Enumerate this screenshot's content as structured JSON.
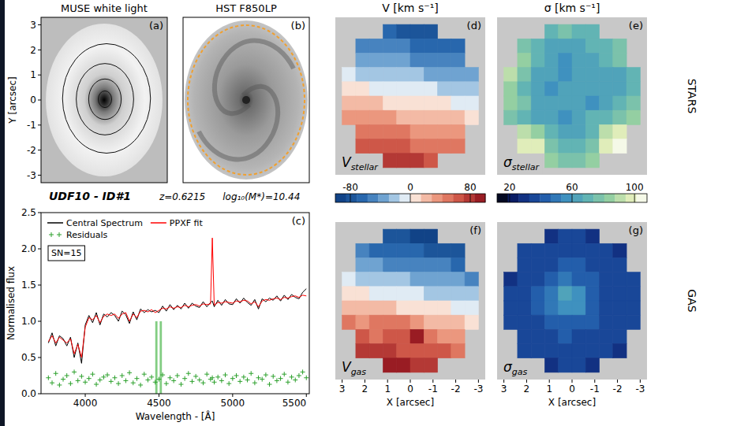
{
  "header": {
    "object": "UDF10 - ID#1",
    "redshift": "z=0.6215",
    "mass": "log₁₀(M*)=10.44"
  },
  "chart_data": [
    {
      "type": "image",
      "title": "MUSE white light",
      "panel_label": "(a)",
      "ylabel": "Y [arcsec]",
      "xlim": [
        -3.3,
        3.3
      ],
      "ylim": [
        -3.3,
        3.3
      ],
      "yticks": [
        -3,
        -2,
        -1,
        0,
        1,
        2,
        3
      ],
      "tick_labels": "y"
    },
    {
      "type": "image",
      "title": "HST F850LP",
      "panel_label": "(b)",
      "tick_labels": false
    },
    {
      "type": "line",
      "panel_label": "(c)",
      "xlabel": "Wavelength - [Å]",
      "ylabel": "Normalised flux",
      "annotation": "SN=15",
      "legend": "upper left",
      "x": [
        3750,
        3775,
        3800,
        3825,
        3850,
        3875,
        3900,
        3925,
        3950,
        3975,
        4000,
        4025,
        4050,
        4075,
        4100,
        4125,
        4150,
        4175,
        4200,
        4225,
        4250,
        4275,
        4300,
        4325,
        4350,
        4375,
        4400,
        4425,
        4450,
        4475,
        4500,
        4525,
        4550,
        4575,
        4600,
        4625,
        4650,
        4675,
        4700,
        4725,
        4750,
        4775,
        4800,
        4825,
        4850,
        4862,
        4875,
        4900,
        4925,
        4950,
        4975,
        5000,
        5025,
        5050,
        5075,
        5100,
        5125,
        5150,
        5175,
        5200,
        5225,
        5250,
        5275,
        5300,
        5325,
        5350,
        5375,
        5400,
        5425,
        5450,
        5475,
        5500
      ],
      "series": [
        {
          "name": "Central Spectrum",
          "color": "#000000",
          "values": [
            0.7,
            0.84,
            0.66,
            0.8,
            0.76,
            0.66,
            0.78,
            0.5,
            0.7,
            0.42,
            0.95,
            1.08,
            0.98,
            1.12,
            0.95,
            1.1,
            1.06,
            1.12,
            1.08,
            1.0,
            1.14,
            1.09,
            0.97,
            1.13,
            1.02,
            1.17,
            1.12,
            1.16,
            1.13,
            1.15,
            1.12,
            1.21,
            1.14,
            1.23,
            1.16,
            1.22,
            1.17,
            1.25,
            1.18,
            1.25,
            1.21,
            1.19,
            1.27,
            1.2,
            1.26,
            1.28,
            1.2,
            1.29,
            1.22,
            1.3,
            1.24,
            1.23,
            1.31,
            1.25,
            1.32,
            1.26,
            1.22,
            1.3,
            1.17,
            1.31,
            1.27,
            1.32,
            1.29,
            1.35,
            1.28,
            1.36,
            1.3,
            1.37,
            1.33,
            1.31,
            1.4,
            1.45
          ]
        },
        {
          "name": "PPXF fit",
          "color": "#ff0000",
          "values": [
            0.72,
            0.8,
            0.7,
            0.78,
            0.74,
            0.7,
            0.76,
            0.55,
            0.68,
            0.5,
            0.92,
            1.05,
            1.02,
            1.08,
            0.98,
            1.07,
            1.1,
            1.08,
            1.1,
            1.04,
            1.1,
            1.12,
            1.0,
            1.1,
            1.05,
            1.14,
            1.15,
            1.13,
            1.16,
            1.12,
            1.15,
            1.18,
            1.17,
            1.2,
            1.18,
            1.2,
            1.19,
            1.22,
            1.2,
            1.22,
            1.23,
            1.21,
            1.24,
            1.23,
            1.24,
            2.15,
            1.22,
            1.26,
            1.25,
            1.27,
            1.26,
            1.25,
            1.28,
            1.27,
            1.29,
            1.28,
            1.24,
            1.27,
            1.2,
            1.28,
            1.3,
            1.29,
            1.31,
            1.32,
            1.3,
            1.33,
            1.32,
            1.34,
            1.35,
            1.33,
            1.36,
            1.35
          ]
        },
        {
          "name": "Residuals",
          "color": "#2ca02c",
          "type": "scatter",
          "marker": "plus",
          "values": [
            0.22,
            0.15,
            0.28,
            0.12,
            0.2,
            0.25,
            0.14,
            0.3,
            0.18,
            0.24,
            0.16,
            0.21,
            0.27,
            0.13,
            0.19,
            0.23,
            0.26,
            0.17,
            0.22,
            0.14,
            0.25,
            0.18,
            0.29,
            0.15,
            0.21,
            0.12,
            0.27,
            0.19,
            0.23,
            0.16,
            0.2,
            0.26,
            0.14,
            0.22,
            0.18,
            0.25,
            0.13,
            0.21,
            0.28,
            0.17,
            0.24,
            0.19,
            0.15,
            0.27,
            0.2,
            0.22,
            0.16,
            0.23,
            0.18,
            0.26,
            0.14,
            0.21,
            0.25,
            0.17,
            0.23,
            0.19,
            0.28,
            0.15,
            0.22,
            0.2,
            0.26,
            0.13,
            0.24,
            0.18,
            0.21,
            0.27,
            0.16,
            0.23,
            0.19,
            0.25,
            0.3,
            0.22
          ]
        }
      ],
      "masked_regions": [
        {
          "x0": 4475,
          "x1": 4490,
          "y1": 1.0
        },
        {
          "x0": 4505,
          "x1": 4520,
          "y1": 1.0
        }
      ],
      "xlim": [
        3700,
        5520
      ],
      "xticks": [
        4000,
        4500,
        5000,
        5500
      ],
      "ylim": [
        0,
        2.5
      ],
      "yticks": [
        {
          "value": 0,
          "label": "0.0"
        },
        {
          "value": 0.5,
          "label": "0.5"
        },
        {
          "value": 1,
          "label": "1.0"
        },
        {
          "value": 1.5,
          "label": "1.5"
        },
        {
          "value": 2,
          "label": "2.0"
        },
        {
          "value": 2.5,
          "label": "2.5"
        }
      ]
    },
    {
      "type": "heatmap",
      "title": "V [km s⁻¹]",
      "panel_label": "(d)",
      "inset_label": "V",
      "inset_subscript": "stellar",
      "tick_labels": false,
      "xlim": [
        3.3,
        -3.3
      ],
      "ylim": [
        -3.3,
        3.3
      ],
      "cell_x": [
        2.7,
        2.1,
        1.5,
        0.9,
        0.3,
        -0.3,
        -0.9,
        -1.5,
        -2.1,
        -2.7
      ],
      "cell_y": [
        2.7,
        2.1,
        1.5,
        0.9,
        0.3,
        -0.3,
        -0.9,
        -1.5,
        -2.1,
        -2.7
      ],
      "colorbar": {
        "range": [
          -100,
          100
        ],
        "ticks": [
          -80,
          0,
          80
        ]
      },
      "cells": [
        [
          null,
          null,
          null,
          -71,
          -74,
          -77,
          -80,
          null,
          null,
          null
        ],
        [
          null,
          -49,
          -52,
          -55,
          -57,
          -60,
          -63,
          -66,
          -69,
          null
        ],
        [
          null,
          -32,
          -35,
          -38,
          -41,
          -43,
          -46,
          -49,
          -52,
          null
        ],
        [
          -12,
          -15,
          -18,
          -21,
          -24,
          -27,
          -29,
          -32,
          -35,
          -38
        ],
        [
          4,
          2,
          -1,
          -4,
          -7,
          -10,
          -13,
          -16,
          -18,
          -21
        ],
        [
          21,
          18,
          16,
          13,
          10,
          7,
          4,
          1,
          -2,
          -4
        ],
        [
          38,
          35,
          32,
          29,
          27,
          24,
          21,
          18,
          15,
          12
        ],
        [
          null,
          52,
          49,
          46,
          43,
          41,
          38,
          35,
          32,
          null
        ],
        [
          null,
          69,
          66,
          63,
          60,
          57,
          55,
          52,
          49,
          null
        ],
        [
          null,
          null,
          null,
          80,
          77,
          74,
          71,
          null,
          null,
          null
        ]
      ]
    },
    {
      "type": "heatmap",
      "title": "σ [km s⁻¹]",
      "panel_label": "(e)",
      "inset_label": "σ",
      "inset_subscript": "stellar",
      "row_label": "STARS",
      "tick_labels": false,
      "xlim": [
        3.3,
        -3.3
      ],
      "ylim": [
        -3.3,
        3.3
      ],
      "cell_x": [
        2.7,
        2.1,
        1.5,
        0.9,
        0.3,
        -0.3,
        -0.9,
        -1.5,
        -2.1,
        -2.7
      ],
      "cell_y": [
        2.7,
        2.1,
        1.5,
        0.9,
        0.3,
        -0.3,
        -0.9,
        -1.5,
        -2.1,
        -2.7
      ],
      "colorbar": {
        "range": [
          12,
          108
        ],
        "ticks": [
          20,
          60,
          100
        ]
      },
      "cells": [
        [
          null,
          null,
          null,
          70,
          75,
          68,
          72,
          null,
          null,
          null
        ],
        [
          null,
          78,
          70,
          65,
          62,
          66,
          70,
          72,
          80,
          null
        ],
        [
          null,
          85,
          72,
          60,
          58,
          62,
          66,
          68,
          74,
          null
        ],
        [
          88,
          74,
          66,
          60,
          58,
          62,
          64,
          60,
          66,
          70
        ],
        [
          82,
          72,
          62,
          58,
          64,
          66,
          60,
          62,
          64,
          72
        ],
        [
          84,
          76,
          64,
          60,
          62,
          60,
          58,
          64,
          70,
          74
        ],
        [
          80,
          70,
          66,
          62,
          58,
          64,
          68,
          72,
          78,
          84
        ],
        [
          null,
          92,
          86,
          70,
          64,
          66,
          70,
          92,
          98,
          null
        ],
        [
          null,
          100,
          96,
          74,
          68,
          72,
          76,
          100,
          104,
          null
        ],
        [
          null,
          null,
          null,
          86,
          80,
          78,
          84,
          null,
          null,
          null
        ]
      ]
    },
    {
      "type": "heatmap",
      "panel_label": "(f)",
      "inset_label": "V",
      "inset_subscript": "gas",
      "tick_labels": "x",
      "xlabel": "X [arcsec]",
      "xticks": [
        3,
        2,
        1,
        0,
        -1,
        -2,
        -3
      ],
      "xlim": [
        3.3,
        -3.3
      ],
      "ylim": [
        -3.3,
        3.3
      ],
      "cell_x": [
        2.7,
        2.1,
        1.5,
        0.9,
        0.3,
        -0.3,
        -0.9,
        -1.5,
        -2.1,
        -2.7
      ],
      "cell_y": [
        2.7,
        2.1,
        1.5,
        0.9,
        0.3,
        -0.3,
        -0.9,
        -1.5,
        -2.1,
        -2.7
      ],
      "cells": [
        [
          null,
          null,
          null,
          -80,
          -83,
          -86,
          -88,
          null,
          null,
          null
        ],
        [
          null,
          -55,
          -59,
          -63,
          -66,
          -69,
          -72,
          -75,
          -78,
          null
        ],
        [
          null,
          -36,
          -40,
          -44,
          -47,
          -50,
          -53,
          -56,
          -59,
          null
        ],
        [
          -14,
          -17,
          -21,
          -24,
          -28,
          -31,
          -33,
          -37,
          -40,
          -43
        ],
        [
          5,
          2,
          -1,
          -5,
          -8,
          -12,
          -15,
          -18,
          -21,
          -24
        ],
        [
          24,
          21,
          18,
          15,
          12,
          8,
          5,
          1,
          -2,
          -5
        ],
        [
          43,
          40,
          45,
          52,
          48,
          30,
          24,
          21,
          17,
          14
        ],
        [
          null,
          59,
          56,
          62,
          70,
          86,
          55,
          40,
          37,
          null
        ],
        [
          null,
          78,
          75,
          72,
          69,
          66,
          63,
          59,
          56,
          null
        ],
        [
          null,
          null,
          null,
          88,
          86,
          83,
          80,
          null,
          null,
          null
        ]
      ]
    },
    {
      "type": "heatmap",
      "panel_label": "(g)",
      "inset_label": "σ",
      "inset_subscript": "gas",
      "row_label": "GAS",
      "tick_labels": "x",
      "xlabel": "X [arcsec]",
      "xticks": [
        3,
        2,
        1,
        0,
        -1,
        -2,
        -3
      ],
      "xlim": [
        3.3,
        -3.3
      ],
      "ylim": [
        -3.3,
        3.3
      ],
      "cell_x": [
        2.7,
        2.1,
        1.5,
        0.9,
        0.3,
        -0.3,
        -0.9,
        -1.5,
        -2.1,
        -2.7
      ],
      "cell_y": [
        2.7,
        2.1,
        1.5,
        0.9,
        0.3,
        -0.3,
        -0.9,
        -1.5,
        -2.1,
        -2.7
      ],
      "cells": [
        [
          null,
          null,
          null,
          32,
          34,
          34,
          32,
          null,
          null,
          null
        ],
        [
          null,
          34,
          36,
          34,
          35,
          36,
          34,
          33,
          32,
          null
        ],
        [
          null,
          36,
          35,
          38,
          40,
          40,
          38,
          35,
          34,
          null
        ],
        [
          28,
          35,
          38,
          44,
          48,
          46,
          40,
          36,
          34,
          35
        ],
        [
          36,
          38,
          42,
          52,
          62,
          58,
          46,
          38,
          35,
          34
        ],
        [
          36,
          37,
          40,
          50,
          58,
          54,
          44,
          38,
          36,
          35
        ],
        [
          35,
          36,
          38,
          42,
          46,
          44,
          40,
          36,
          34,
          35
        ],
        [
          null,
          34,
          36,
          38,
          40,
          38,
          36,
          35,
          34,
          null
        ],
        [
          null,
          33,
          34,
          35,
          36,
          35,
          34,
          33,
          32,
          null
        ],
        [
          null,
          null,
          null,
          32,
          33,
          33,
          32,
          null,
          null,
          null
        ]
      ]
    }
  ]
}
